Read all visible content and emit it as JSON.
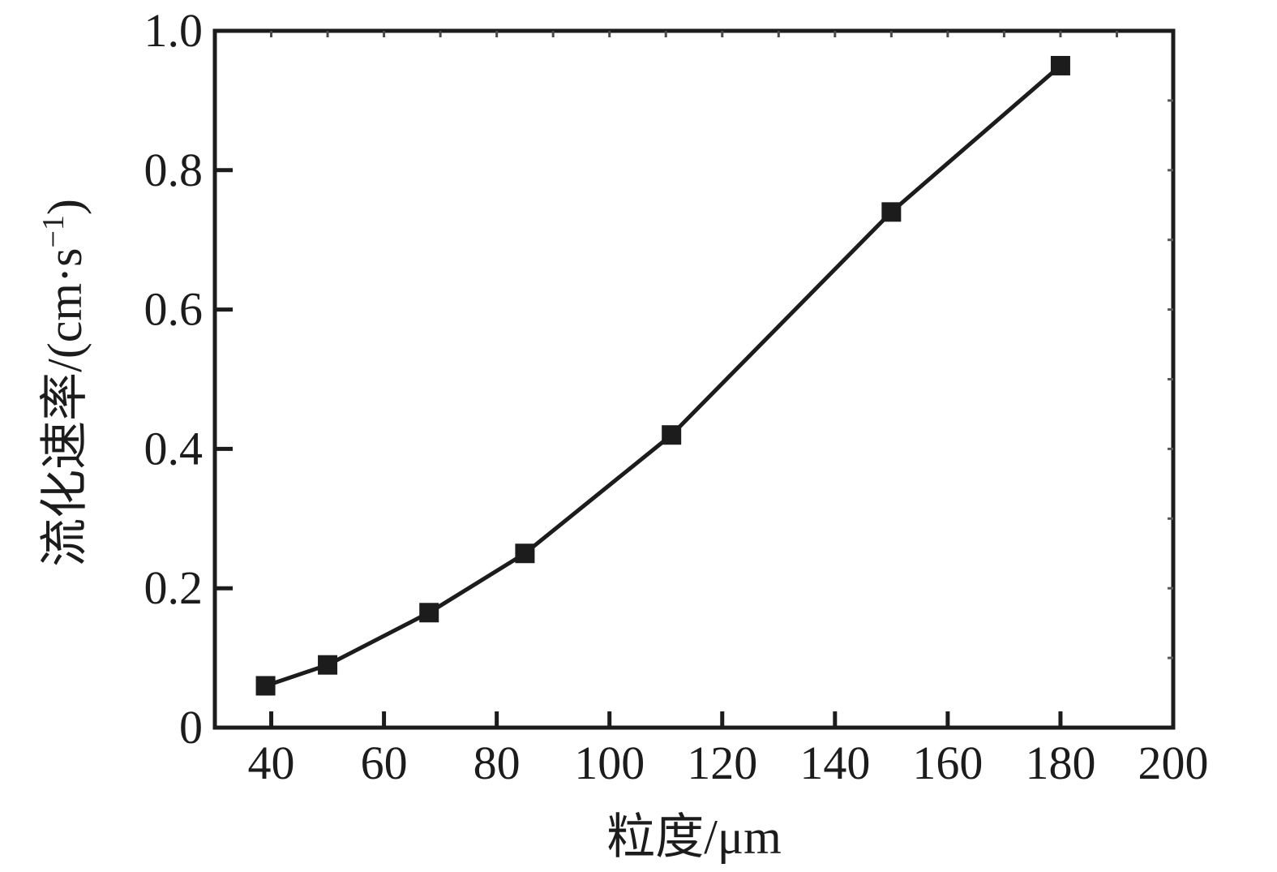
{
  "figure": {
    "background_color": "#ffffff",
    "ink_color": "#1c1c1c"
  },
  "chart_data": {
    "type": "line",
    "title": "",
    "xlabel": "粒度/μm",
    "ylabel": "流化速率/(cm·s⁻¹)",
    "ylabel_parts": {
      "prefix": "流化速率/(cm·s",
      "superscript": "−1",
      "suffix": ")"
    },
    "xlim": [
      30,
      200
    ],
    "ylim": [
      0,
      1.0
    ],
    "grid": false,
    "legend": "none",
    "x_ticks": [
      40,
      60,
      80,
      100,
      120,
      140,
      160,
      180,
      200
    ],
    "x_tick_labels": [
      "40",
      "60",
      "80",
      "100",
      "120",
      "140",
      "160",
      "180",
      "200"
    ],
    "y_ticks": [
      0,
      0.2,
      0.4,
      0.6,
      0.8,
      1.0
    ],
    "y_tick_labels": [
      "0",
      "0.2",
      "0.4",
      "0.6",
      "0.8",
      "1.0"
    ],
    "top_minor_tick_step": 10,
    "right_minor_tick_step": 0.1,
    "series": [
      {
        "name": "fluidization-rate",
        "marker": "filled-square",
        "line_style": "solid",
        "color": "#1c1c1c",
        "x": [
          39,
          50,
          68,
          85,
          111,
          150,
          180
        ],
        "y": [
          0.06,
          0.09,
          0.165,
          0.25,
          0.42,
          0.74,
          0.95
        ]
      }
    ]
  }
}
